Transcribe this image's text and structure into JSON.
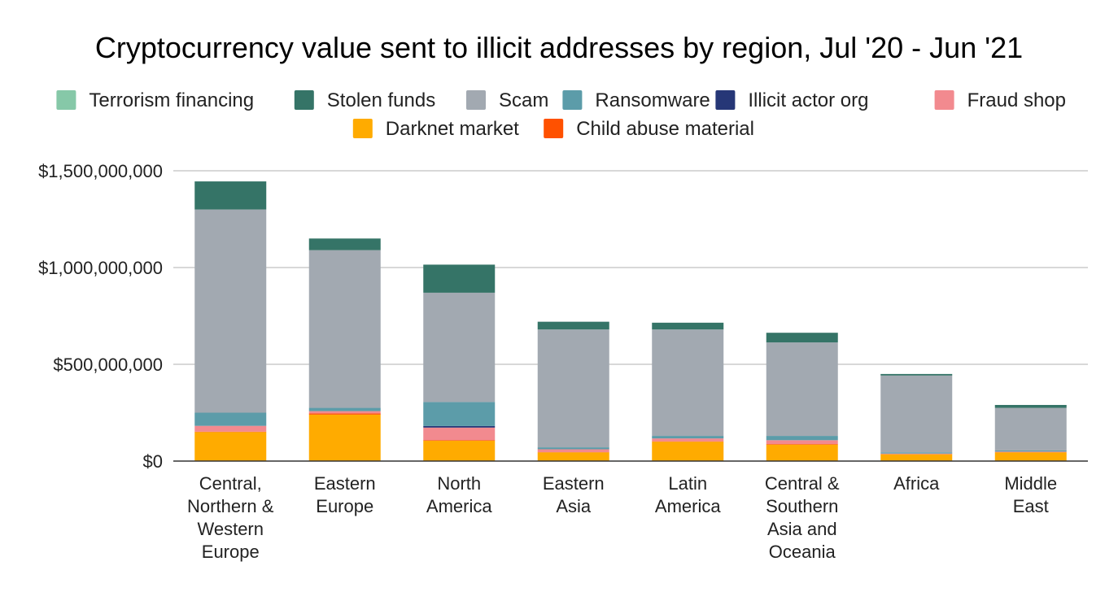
{
  "chart_data": {
    "type": "bar",
    "stacked": true,
    "title": "Cryptocurrency value sent to illicit addresses by region, Jul '20 - Jun '21",
    "xlabel": "",
    "ylabel": "",
    "ylim": [
      0,
      1500000000
    ],
    "y_ticks": [
      {
        "value": 0,
        "label": "$0"
      },
      {
        "value": 500000000,
        "label": "$500,000,000"
      },
      {
        "value": 1000000000,
        "label": "$1,000,000,000"
      },
      {
        "value": 1500000000,
        "label": "$1,500,000,000"
      }
    ],
    "grid": true,
    "legend_position": "top",
    "categories": [
      "Central, Northern & Western Europe",
      "Eastern Europe",
      "North America",
      "Eastern Asia",
      "Latin America",
      "Central & Southern Asia and Oceania",
      "Africa",
      "Middle East"
    ],
    "category_lines": [
      [
        "Central,",
        "Northern &",
        "Western",
        "Europe"
      ],
      [
        "Eastern",
        "Europe"
      ],
      [
        "North",
        "America"
      ],
      [
        "Eastern",
        "Asia"
      ],
      [
        "Latin",
        "America"
      ],
      [
        "Central &",
        "Southern",
        "Asia and",
        "Oceania"
      ],
      [
        "Africa"
      ],
      [
        "Middle",
        "East"
      ]
    ],
    "legend": [
      "Terrorism financing",
      "Stolen funds",
      "Scam",
      "Ransomware",
      "Illicit actor org",
      "Fraud shop",
      "Darknet market",
      "Child abuse material"
    ],
    "series": [
      {
        "name": "Darknet market",
        "color": "#FFAB00",
        "values": [
          150000000,
          240000000,
          105000000,
          45000000,
          100000000,
          85000000,
          35000000,
          45000000
        ]
      },
      {
        "name": "Child abuse material",
        "color": "#FF5100",
        "values": [
          2000000,
          6000000,
          3000000,
          1000000,
          2000000,
          3000000,
          1000000,
          1000000
        ]
      },
      {
        "name": "Fraud shop",
        "color": "#F28A8F",
        "values": [
          30000000,
          12000000,
          65000000,
          15000000,
          15000000,
          20000000,
          3000000,
          3000000
        ]
      },
      {
        "name": "Illicit actor org",
        "color": "#263777",
        "values": [
          0,
          0,
          8000000,
          0,
          0,
          0,
          0,
          0
        ]
      },
      {
        "name": "Ransomware",
        "color": "#5C9CA9",
        "values": [
          68000000,
          17000000,
          124000000,
          10000000,
          13000000,
          22000000,
          6000000,
          6000000
        ]
      },
      {
        "name": "Scam",
        "color": "#A2A9B1",
        "values": [
          1050000000,
          815000000,
          565000000,
          609000000,
          550000000,
          483000000,
          397000000,
          220000000
        ]
      },
      {
        "name": "Stolen funds",
        "color": "#357467",
        "values": [
          145000000,
          60000000,
          145000000,
          40000000,
          35000000,
          50000000,
          8000000,
          15000000
        ]
      },
      {
        "name": "Terrorism financing",
        "color": "#86C8A8",
        "values": [
          0,
          0,
          0,
          0,
          0,
          0,
          0,
          0
        ]
      }
    ]
  }
}
